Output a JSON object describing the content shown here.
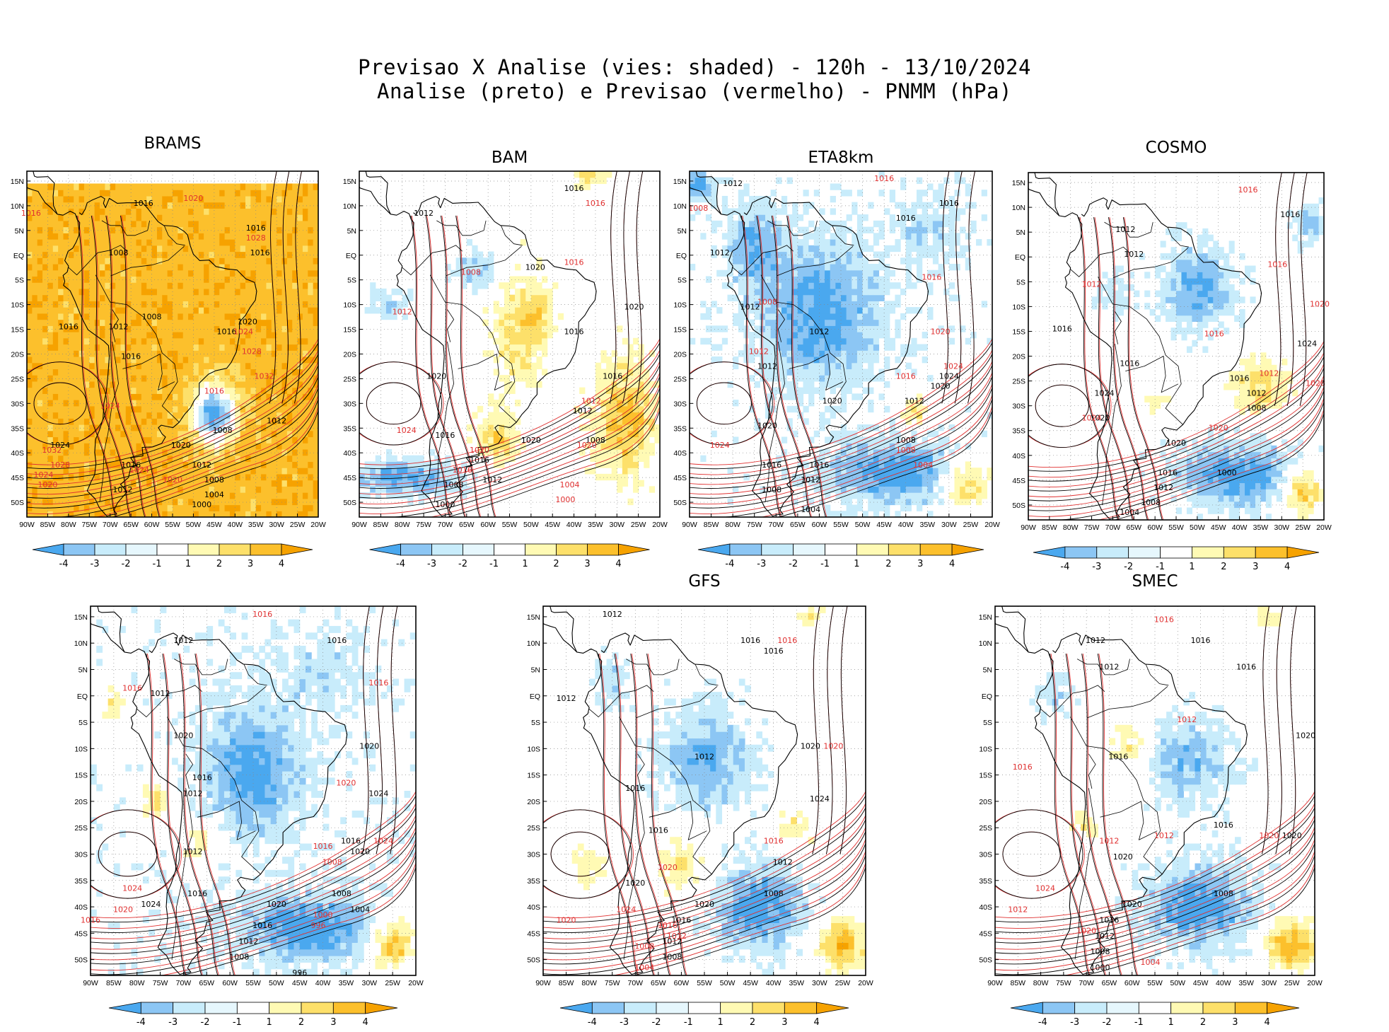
{
  "header": {
    "line1": "Previsao X Analise (vies: shaded) - 120h - 13/10/2024",
    "line2": "Analise (preto) e Previsao (vermelho) - PNMM (hPa)"
  },
  "colors": {
    "neg4": "#4aa8ef",
    "neg3": "#8cc6f4",
    "neg2": "#c8ecfb",
    "neg1": "#ffffff",
    "pos1": "#fffab4",
    "pos2": "#fde06a",
    "pos3": "#fcc02c",
    "pos4": "#f6a200",
    "analysis_contour": "#000000",
    "forecast_contour": "#e03030"
  },
  "colorbar": {
    "labels": [
      "-4",
      "-3",
      "-2",
      "-1",
      "1",
      "2",
      "3",
      "4"
    ]
  },
  "axes": {
    "lat_labels": [
      "15N",
      "10N",
      "5N",
      "EQ",
      "5S",
      "10S",
      "15S",
      "20S",
      "25S",
      "30S",
      "35S",
      "40S",
      "45S",
      "50S"
    ],
    "lon_labels": [
      "90W",
      "85W",
      "80W",
      "75W",
      "70W",
      "65W",
      "60W",
      "55W",
      "50W",
      "45W",
      "40W",
      "35W",
      "30W",
      "25W",
      "20W"
    ]
  },
  "panels": [
    {
      "id": "brams",
      "title": "BRAMS",
      "base_bias": 3.6,
      "blobs": [
        [
          -45,
          -32,
          5,
          6,
          -7.5
        ]
      ],
      "analysis_labels": [
        [
          "1016",
          -62,
          10
        ],
        [
          "1008",
          -68,
          0
        ],
        [
          "1016",
          -80,
          -15
        ],
        [
          "1012",
          -68,
          -15
        ],
        [
          "1008",
          -60,
          -13
        ],
        [
          "1016",
          -65,
          -21
        ],
        [
          "1016",
          -42,
          -16
        ],
        [
          "1020",
          -37,
          -14
        ],
        [
          "1016",
          -35,
          5
        ],
        [
          "1016",
          -34,
          0
        ],
        [
          "1012",
          -30,
          -34
        ],
        [
          "1024",
          -82,
          -39
        ],
        [
          "1016",
          -65,
          -43
        ],
        [
          "1012",
          -67,
          -48
        ],
        [
          "1012",
          -48,
          -43
        ],
        [
          "1008",
          -45,
          -46
        ],
        [
          "1004",
          -45,
          -49
        ],
        [
          "1000",
          -48,
          -51
        ],
        [
          "1020",
          -53,
          -39
        ],
        [
          "1008",
          -43,
          -36
        ]
      ],
      "forecast_labels": [
        [
          "1016",
          -89,
          8
        ],
        [
          "1020",
          -50,
          11
        ],
        [
          "1028",
          -35,
          3
        ],
        [
          "1024",
          -38,
          -16
        ],
        [
          "1028",
          -36,
          -20
        ],
        [
          "1032",
          -33,
          -25
        ],
        [
          "1016",
          -45,
          -28
        ],
        [
          "1024",
          -70,
          -31
        ],
        [
          "1032",
          -84,
          -40
        ],
        [
          "1028",
          -82,
          -43
        ],
        [
          "1024",
          -86,
          -45
        ],
        [
          "1020",
          -85,
          -47
        ],
        [
          "1024",
          -63,
          -44
        ],
        [
          "1020",
          -55,
          -46
        ]
      ]
    },
    {
      "id": "bam",
      "title": "BAM",
      "base_bias": 0.15,
      "blobs": [
        [
          -53,
          -15,
          6,
          12,
          2.2
        ],
        [
          -58,
          -37,
          5,
          5,
          2.5
        ],
        [
          -28,
          -33,
          7,
          12,
          3.2
        ],
        [
          -63,
          -3,
          6,
          5,
          -2.2
        ],
        [
          -83,
          -10,
          8,
          4,
          -1.8
        ],
        [
          -80,
          -45,
          14,
          4,
          -3.5
        ],
        [
          -36,
          16,
          4,
          2,
          2.5
        ],
        [
          -48,
          -12,
          3,
          6,
          1.8
        ]
      ],
      "analysis_labels": [
        [
          "1016",
          -40,
          13
        ],
        [
          "1012",
          -75,
          8
        ],
        [
          "1020",
          -49,
          -3
        ],
        [
          "1016",
          -40,
          -16
        ],
        [
          "1020",
          -26,
          -11
        ],
        [
          "1016",
          -31,
          -25
        ],
        [
          "1012",
          -38,
          -32
        ],
        [
          "1008",
          -35,
          -38
        ],
        [
          "1020",
          -50,
          -38
        ],
        [
          "1016",
          -62,
          -42
        ],
        [
          "1012",
          -59,
          -46
        ],
        [
          "1008",
          -68,
          -47
        ],
        [
          "1000",
          -70,
          -51
        ],
        [
          "1016",
          -70,
          -37
        ],
        [
          "1020",
          -72,
          -25
        ]
      ],
      "forecast_labels": [
        [
          "1016",
          -35,
          10
        ],
        [
          "1016",
          -40,
          -2
        ],
        [
          "1008",
          -64,
          -4
        ],
        [
          "1012",
          -80,
          -12
        ],
        [
          "1024",
          -79,
          -36
        ],
        [
          "1020",
          -62,
          -40
        ],
        [
          "1020",
          -37,
          -39
        ],
        [
          "1012",
          -36,
          -30
        ],
        [
          "1004",
          -41,
          -47
        ],
        [
          "1000",
          -42,
          -50
        ],
        [
          "1016",
          -66,
          -44
        ]
      ]
    },
    {
      "id": "eta",
      "title": "ETA8km",
      "base_bias": -0.4,
      "blobs": [
        [
          -60,
          -12,
          14,
          14,
          -3.2
        ],
        [
          -75,
          2,
          6,
          8,
          -2.5
        ],
        [
          -42,
          -44,
          16,
          6,
          -3.5
        ],
        [
          -88,
          14,
          4,
          3,
          -3
        ],
        [
          -38,
          -31,
          3,
          3,
          3
        ],
        [
          -26,
          -46,
          6,
          5,
          3.8
        ],
        [
          -35,
          5,
          10,
          8,
          -1.2
        ]
      ],
      "analysis_labels": [
        [
          "1012",
          -80,
          14
        ],
        [
          "1016",
          -40,
          7
        ],
        [
          "1016",
          -30,
          10
        ],
        [
          "1012",
          -83,
          0
        ],
        [
          "1012",
          -76,
          -11
        ],
        [
          "1012",
          -60,
          -16
        ],
        [
          "1012",
          -72,
          -23
        ],
        [
          "1020",
          -57,
          -30
        ],
        [
          "1024",
          -30,
          -25
        ],
        [
          "1020",
          -32,
          -27
        ],
        [
          "1012",
          -38,
          -30
        ],
        [
          "1008",
          -40,
          -38
        ],
        [
          "1016",
          -60,
          -43
        ],
        [
          "1012",
          -62,
          -46
        ],
        [
          "1008",
          -71,
          -48
        ],
        [
          "1004",
          -62,
          -52
        ],
        [
          "1016",
          -71,
          -43
        ],
        [
          "1020",
          -72,
          -35
        ]
      ],
      "forecast_labels": [
        [
          "1008",
          -88,
          9
        ],
        [
          "1016",
          -45,
          15
        ],
        [
          "1016",
          -34,
          -5
        ],
        [
          "1008",
          -72,
          -10
        ],
        [
          "1020",
          -32,
          -16
        ],
        [
          "1024",
          -29,
          -23
        ],
        [
          "1012",
          -74,
          -20
        ],
        [
          "1024",
          -83,
          -39
        ],
        [
          "1008",
          -40,
          -40
        ],
        [
          "1004",
          -36,
          -43
        ],
        [
          "1016",
          -40,
          -25
        ]
      ]
    },
    {
      "id": "cosmo",
      "title": "COSMO",
      "base_bias": -0.3,
      "blobs": [
        [
          -50,
          -6,
          8,
          8,
          -3
        ],
        [
          -40,
          -44,
          14,
          6,
          -3.5
        ],
        [
          -35,
          -26,
          8,
          6,
          2.8
        ],
        [
          -25,
          -47,
          5,
          5,
          4
        ],
        [
          -60,
          -30,
          5,
          4,
          1.5
        ],
        [
          -23,
          7,
          4,
          4,
          -2
        ],
        [
          -70,
          -8,
          4,
          4,
          -1.5
        ]
      ],
      "analysis_labels": [
        [
          "1016",
          -28,
          8
        ],
        [
          "1012",
          -67,
          5
        ],
        [
          "1012",
          -65,
          0
        ],
        [
          "1016",
          -82,
          -15
        ],
        [
          "1016",
          -66,
          -22
        ],
        [
          "1024",
          -24,
          -18
        ],
        [
          "1016",
          -40,
          -25
        ],
        [
          "1012",
          -36,
          -28
        ],
        [
          "1008",
          -36,
          -31
        ],
        [
          "1020",
          -55,
          -38
        ],
        [
          "1016",
          -57,
          -44
        ],
        [
          "1012",
          -58,
          -47
        ],
        [
          "1008",
          -61,
          -50
        ],
        [
          "1000",
          -43,
          -44
        ],
        [
          "1004",
          -66,
          -52
        ],
        [
          "1024",
          -72,
          -28
        ],
        [
          "1020",
          -73,
          -33
        ]
      ],
      "forecast_labels": [
        [
          "1016",
          -38,
          13
        ],
        [
          "1016",
          -31,
          -2
        ],
        [
          "1020",
          -21,
          -10
        ],
        [
          "1016",
          -46,
          -16
        ],
        [
          "1028",
          -22,
          -26
        ],
        [
          "1012",
          -33,
          -24
        ],
        [
          "1020",
          -45,
          -35
        ],
        [
          "1024",
          -75,
          -33
        ],
        [
          "1012",
          -75,
          -6
        ]
      ]
    },
    {
      "id": "p5",
      "title": "",
      "base_bias": -0.5,
      "blobs": [
        [
          -55,
          -14,
          10,
          12,
          -3
        ],
        [
          -43,
          -44,
          14,
          6,
          -3.5
        ],
        [
          -25,
          -47,
          5,
          5,
          4
        ],
        [
          -67,
          -28,
          4,
          4,
          2.2
        ],
        [
          -85,
          -2,
          3,
          5,
          2
        ],
        [
          -76,
          -20,
          3,
          4,
          2.5
        ],
        [
          -40,
          5,
          10,
          8,
          -1.2
        ]
      ],
      "analysis_labels": [
        [
          "1016",
          -37,
          10
        ],
        [
          "1012",
          -70,
          10
        ],
        [
          "1012",
          -75,
          0
        ],
        [
          "1020",
          -70,
          -8
        ],
        [
          "1016",
          -66,
          -16
        ],
        [
          "1012",
          -68,
          -19
        ],
        [
          "1020",
          -30,
          -10
        ],
        [
          "1024",
          -28,
          -19
        ],
        [
          "1016",
          -34,
          -28
        ],
        [
          "1020",
          -32,
          -30
        ],
        [
          "1008",
          -36,
          -38
        ],
        [
          "1004",
          -32,
          -41
        ],
        [
          "1020",
          -50,
          -40
        ],
        [
          "1016",
          -53,
          -44
        ],
        [
          "1012",
          -56,
          -47
        ],
        [
          "1008",
          -58,
          -50
        ],
        [
          "996",
          -45,
          -53
        ],
        [
          "1024",
          -77,
          -40
        ],
        [
          "1012",
          -68,
          -30
        ],
        [
          "1016",
          -67,
          -38
        ]
      ],
      "forecast_labels": [
        [
          "1016",
          -53,
          15
        ],
        [
          "1016",
          -28,
          2
        ],
        [
          "1016",
          -81,
          1
        ],
        [
          "1020",
          -35,
          -17
        ],
        [
          "1024",
          -27,
          -28
        ],
        [
          "1016",
          -40,
          -29
        ],
        [
          "1008",
          -38,
          -32
        ],
        [
          "1024",
          -81,
          -37
        ],
        [
          "1020",
          -83,
          -41
        ],
        [
          "1016",
          -90,
          -43
        ],
        [
          "1000",
          -40,
          -42
        ],
        [
          "996",
          -41,
          -44
        ]
      ]
    },
    {
      "id": "gfs",
      "title": "GFS",
      "base_bias": -0.2,
      "blobs": [
        [
          -55,
          -12,
          10,
          10,
          -2.8
        ],
        [
          -43,
          -40,
          10,
          8,
          -3.5
        ],
        [
          -25,
          -47,
          5,
          5,
          4
        ],
        [
          -60,
          -32,
          5,
          6,
          2.2
        ],
        [
          -35,
          -25,
          4,
          4,
          2
        ],
        [
          -80,
          -32,
          5,
          5,
          1.8
        ],
        [
          -75,
          3,
          4,
          6,
          -1.5
        ],
        [
          -32,
          15,
          3,
          2,
          2.2
        ]
      ],
      "analysis_labels": [
        [
          "1012",
          -75,
          15
        ],
        [
          "1016",
          -45,
          10
        ],
        [
          "1016",
          -40,
          8
        ],
        [
          "1012",
          -85,
          -1
        ],
        [
          "1016",
          -70,
          -18
        ],
        [
          "1012",
          -55,
          -12
        ],
        [
          "1020",
          -32,
          -10
        ],
        [
          "1024",
          -30,
          -20
        ],
        [
          "1016",
          -65,
          -26
        ],
        [
          "1012",
          -38,
          -32
        ],
        [
          "1008",
          -40,
          -38
        ],
        [
          "1020",
          -55,
          -40
        ],
        [
          "1016",
          -60,
          -43
        ],
        [
          "1012",
          -62,
          -47
        ],
        [
          "1008",
          -62,
          -50
        ],
        [
          "1020",
          -70,
          -36
        ]
      ],
      "forecast_labels": [
        [
          "1016",
          -37,
          10
        ],
        [
          "1020",
          -27,
          -10
        ],
        [
          "1016",
          -40,
          -28
        ],
        [
          "1020",
          -63,
          -33
        ],
        [
          "1020",
          -85,
          -43
        ],
        [
          "1024",
          -72,
          -41
        ],
        [
          "1016",
          -63,
          -44
        ],
        [
          "1012",
          -61,
          -46
        ],
        [
          "1004",
          -68,
          -52
        ],
        [
          "1008",
          -68,
          -48
        ]
      ]
    },
    {
      "id": "smec",
      "title": "SMEC",
      "base_bias": -0.2,
      "blobs": [
        [
          -48,
          -12,
          10,
          8,
          -2.5
        ],
        [
          -45,
          -40,
          12,
          8,
          -3.5
        ],
        [
          -25,
          -47,
          6,
          5,
          4
        ],
        [
          -60,
          -10,
          5,
          6,
          2.2
        ],
        [
          -70,
          -24,
          3,
          3,
          2
        ],
        [
          -77,
          0,
          4,
          5,
          -1.5
        ],
        [
          -30,
          15,
          3,
          2,
          2.2
        ]
      ],
      "analysis_labels": [
        [
          "1016",
          -45,
          10
        ],
        [
          "1012",
          -68,
          10
        ],
        [
          "1012",
          -65,
          5
        ],
        [
          "1016",
          -35,
          5
        ],
        [
          "1016",
          -63,
          -12
        ],
        [
          "1020",
          -22,
          -8
        ],
        [
          "1016",
          -40,
          -25
        ],
        [
          "1020",
          -25,
          -27
        ],
        [
          "1020",
          -62,
          -31
        ],
        [
          "1008",
          -40,
          -38
        ],
        [
          "1020",
          -60,
          -40
        ],
        [
          "1016",
          -65,
          -43
        ],
        [
          "1012",
          -66,
          -46
        ],
        [
          "1008",
          -67,
          -49
        ],
        [
          "1000",
          -67,
          -52
        ]
      ],
      "forecast_labels": [
        [
          "1016",
          -53,
          14
        ],
        [
          "1012",
          -48,
          -5
        ],
        [
          "1016",
          -84,
          -14
        ],
        [
          "1012",
          -65,
          -28
        ],
        [
          "1020",
          -30,
          -27
        ],
        [
          "1024",
          -79,
          -37
        ],
        [
          "1020",
          -70,
          -45
        ],
        [
          "1012",
          -85,
          -41
        ],
        [
          "1004",
          -56,
          -51
        ],
        [
          "1012",
          -53,
          -27
        ]
      ]
    }
  ]
}
